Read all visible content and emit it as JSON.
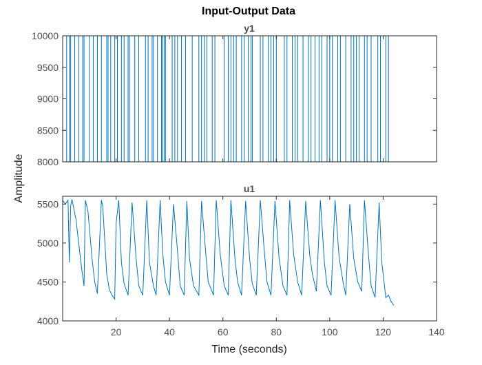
{
  "chart_data": {
    "type": "line",
    "title": "Input-Output Data",
    "xlabel": "Time (seconds)",
    "ylabel": "Amplitude",
    "xlim": [
      0,
      140
    ],
    "xticks": [
      20,
      40,
      60,
      80,
      100,
      120,
      140
    ],
    "line_color": "#0072bd",
    "panels": [
      {
        "name": "y1",
        "ylim": [
          8000,
          10000
        ],
        "yticks": [
          8000,
          8500,
          9000,
          9500,
          10000
        ],
        "signal": "binary",
        "low": 8000,
        "high": 10000,
        "x_end": 122,
        "switch_times": [
          1.5,
          2.5,
          3.0,
          4.5,
          6.0,
          7.5,
          8.0,
          10.0,
          11.5,
          13.0,
          14.5,
          16.5,
          17.0,
          18.0,
          19.5,
          20.5,
          22.0,
          23.0,
          24.5,
          25.0,
          27.0,
          28.5,
          31.0,
          32.0,
          33.5,
          34.0,
          35.5,
          37.0,
          37.5,
          38.0,
          38.5,
          41.0,
          42.0,
          43.0,
          44.5,
          46.0,
          48.5,
          51.0,
          52.0,
          53.0,
          54.0,
          56.0,
          57.0,
          60.5,
          62.0,
          63.0,
          64.0,
          65.0,
          67.0,
          68.0,
          69.5,
          70.5,
          71.0,
          74.0,
          75.0,
          77.0,
          78.0,
          79.0,
          80.0,
          83.0,
          84.0,
          86.0,
          87.0,
          88.0,
          90.0,
          92.0,
          93.0,
          94.5,
          96.0,
          97.0,
          99.0,
          100.0,
          101.0,
          103.0,
          104.0,
          106.0,
          108.0,
          109.0,
          110.0,
          111.0,
          113.0,
          114.0,
          115.5,
          118.0,
          119.0,
          121.0,
          122.0
        ]
      },
      {
        "name": "u1",
        "ylim": [
          4000,
          5600
        ],
        "yticks": [
          4000,
          4500,
          5000,
          5500
        ],
        "signal": "continuous",
        "x": [
          0.0,
          1.0,
          2.0,
          2.5,
          3.0,
          3.5,
          5.0,
          7.0,
          8.0,
          8.5,
          9.5,
          11.0,
          12.0,
          13.0,
          14.5,
          15.0,
          16.5,
          17.5,
          18.5,
          19.5,
          20.0,
          21.0,
          22.0,
          23.0,
          24.5,
          26.0,
          27.5,
          28.5,
          30.0,
          31.5,
          32.5,
          34.0,
          35.0,
          36.5,
          37.5,
          38.5,
          40.0,
          41.5,
          43.0,
          44.0,
          45.5,
          46.5,
          47.5,
          49.0,
          51.0,
          52.0,
          53.5,
          54.5,
          56.5,
          57.5,
          59.0,
          60.5,
          62.0,
          63.0,
          64.5,
          65.5,
          67.0,
          68.5,
          70.0,
          71.0,
          72.5,
          74.0,
          75.5,
          76.5,
          78.0,
          79.5,
          81.0,
          82.5,
          84.0,
          85.0,
          86.5,
          88.0,
          89.5,
          91.0,
          92.5,
          93.5,
          95.0,
          96.5,
          98.0,
          99.0,
          100.5,
          102.0,
          103.5,
          105.0,
          106.0,
          107.5,
          109.0,
          110.5,
          112.0,
          113.0,
          114.5,
          115.5,
          117.0,
          118.5,
          119.5,
          120.5,
          121.0,
          122.0,
          123.0,
          124.0
        ],
        "y": [
          5550,
          5500,
          5550,
          4750,
          5480,
          5560,
          5300,
          4700,
          4450,
          5550,
          5400,
          4800,
          4500,
          4350,
          5550,
          5480,
          4600,
          4400,
          4330,
          4280,
          5250,
          5550,
          4750,
          4480,
          4330,
          5520,
          4800,
          4450,
          4330,
          5550,
          4750,
          4450,
          4330,
          5550,
          4850,
          4500,
          4330,
          5500,
          4900,
          4450,
          4330,
          5540,
          4800,
          4450,
          4330,
          5540,
          4900,
          4500,
          4330,
          5550,
          4850,
          4450,
          4330,
          5550,
          4800,
          4500,
          4330,
          5540,
          4800,
          4480,
          4330,
          5550,
          4900,
          4500,
          4330,
          5540,
          4820,
          4450,
          4330,
          5550,
          4850,
          4500,
          4330,
          5540,
          4850,
          4600,
          4380,
          5550,
          4750,
          4450,
          4330,
          5550,
          4820,
          4500,
          4330,
          5500,
          4800,
          4500,
          4380,
          5550,
          4850,
          4450,
          4300,
          5520,
          4750,
          4450,
          4300,
          4330,
          4250,
          4200
        ]
      }
    ]
  }
}
